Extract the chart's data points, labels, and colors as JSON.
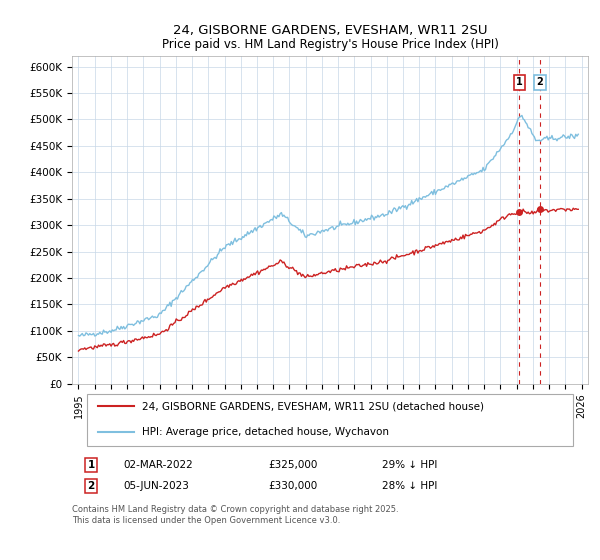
{
  "title": "24, GISBORNE GARDENS, EVESHAM, WR11 2SU",
  "subtitle": "Price paid vs. HM Land Registry's House Price Index (HPI)",
  "hpi_color": "#7fbfdf",
  "price_color": "#cc2222",
  "dashed_line_color": "#cc2222",
  "background_color": "#ffffff",
  "grid_color": "#c8d8e8",
  "ylim": [
    0,
    620000
  ],
  "yticks": [
    0,
    50000,
    100000,
    150000,
    200000,
    250000,
    300000,
    350000,
    400000,
    450000,
    500000,
    550000,
    600000
  ],
  "legend_entries": [
    "24, GISBORNE GARDENS, EVESHAM, WR11 2SU (detached house)",
    "HPI: Average price, detached house, Wychavon"
  ],
  "sale1_date": "02-MAR-2022",
  "sale1_price": 325000,
  "sale1_pct": "29%",
  "sale2_date": "05-JUN-2023",
  "sale2_price": 330000,
  "sale2_pct": "28%",
  "footnote": "Contains HM Land Registry data © Crown copyright and database right 2025.\nThis data is licensed under the Open Government Licence v3.0.",
  "sale1_x": 2022.17,
  "sale2_x": 2023.43,
  "sale1_y": 325000,
  "sale2_y": 330000,
  "xmin": 1994.6,
  "xmax": 2026.4
}
